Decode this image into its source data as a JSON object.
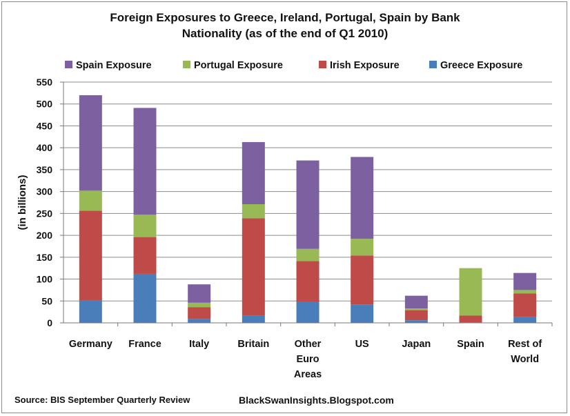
{
  "chart_data": {
    "type": "bar",
    "stacked": true,
    "title_lines": [
      "Foreign Exposures to Greece, Ireland, Portugal, Spain by Bank",
      "Nationality (as of the end of Q1 2010)"
    ],
    "ylabel": "(in billions)",
    "xlabel": "",
    "ylim": [
      0,
      550
    ],
    "yticks": [
      0,
      50,
      100,
      150,
      200,
      250,
      300,
      350,
      400,
      450,
      500,
      550
    ],
    "grid": true,
    "legend_position": "top",
    "categories": [
      [
        "Germany"
      ],
      [
        "France"
      ],
      [
        "Italy"
      ],
      [
        "Britain"
      ],
      [
        "Other",
        "Euro",
        "Areas"
      ],
      [
        "US"
      ],
      [
        "Japan"
      ],
      [
        "Spain"
      ],
      [
        "Rest of",
        "World"
      ]
    ],
    "series": [
      {
        "name": "Greece Exposure",
        "color": "#4a7ebb",
        "values": [
          51,
          112,
          9,
          16,
          48,
          42,
          6,
          1,
          13
        ]
      },
      {
        "name": "Irish Exposure",
        "color": "#be4b48",
        "values": [
          205,
          84,
          27,
          223,
          93,
          112,
          23,
          16,
          54
        ]
      },
      {
        "name": "Portugal Exposure",
        "color": "#98b954",
        "values": [
          46,
          51,
          10,
          32,
          28,
          38,
          4,
          108,
          8
        ]
      },
      {
        "name": "Spain Exposure",
        "color": "#7d60a0",
        "values": [
          218,
          244,
          42,
          142,
          202,
          187,
          29,
          0,
          39
        ]
      }
    ],
    "legend_order": [
      "Spain Exposure",
      "Portugal Exposure",
      "Irish Exposure",
      "Greece Exposure"
    ]
  },
  "footer": {
    "source": "Source: BIS September Quarterly Review",
    "site": "BlackSwanInsights.Blogspot.com"
  }
}
